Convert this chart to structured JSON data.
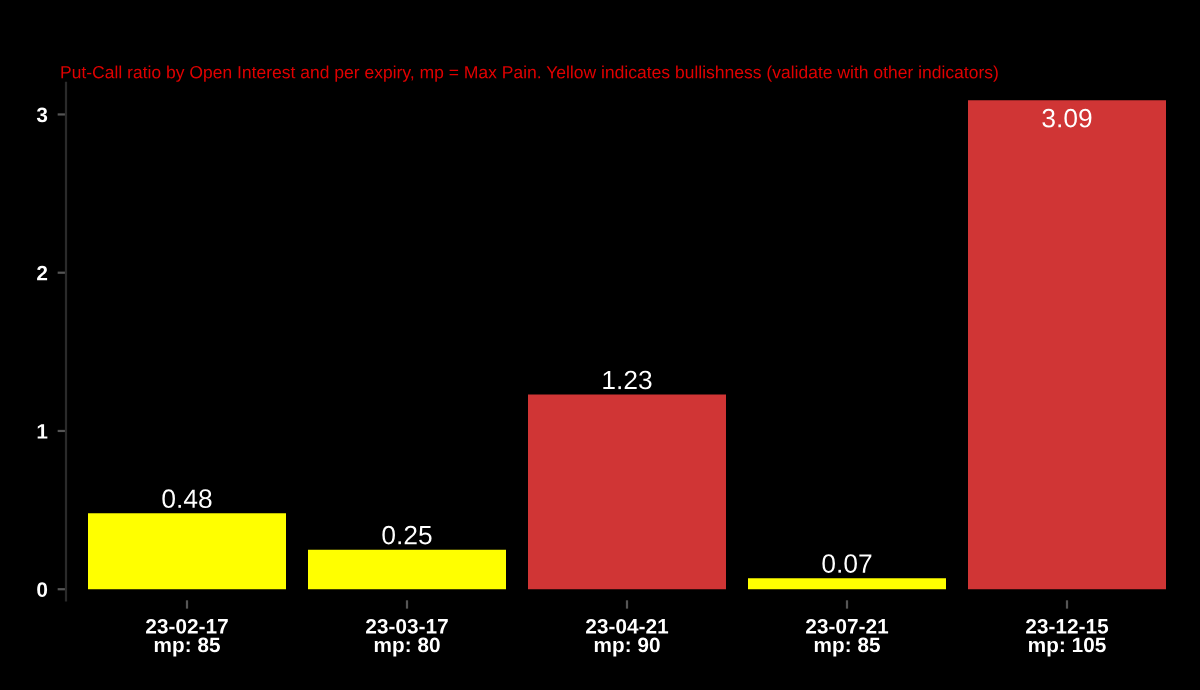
{
  "chart_data": {
    "type": "bar",
    "subtitle": "Put-Call ratio by Open Interest and per expiry, mp = Max Pain. Yellow indicates bullishness (validate with other indicators)",
    "categories": [
      "23-02-17\nmp: 85",
      "23-03-17\nmp: 80",
      "23-04-21\nmp: 90",
      "23-07-21\nmp: 85",
      "23-12-15\nmp: 105"
    ],
    "values": [
      0.48,
      0.25,
      1.23,
      0.07,
      3.09
    ],
    "colors": [
      "#ffff00",
      "#ffff00",
      "#d03535",
      "#ffff00",
      "#d03535"
    ],
    "data_labels": true,
    "ylim": [
      -0.07,
      3.2
    ],
    "yticks": [
      0,
      1,
      2,
      3
    ],
    "grid": false
  }
}
